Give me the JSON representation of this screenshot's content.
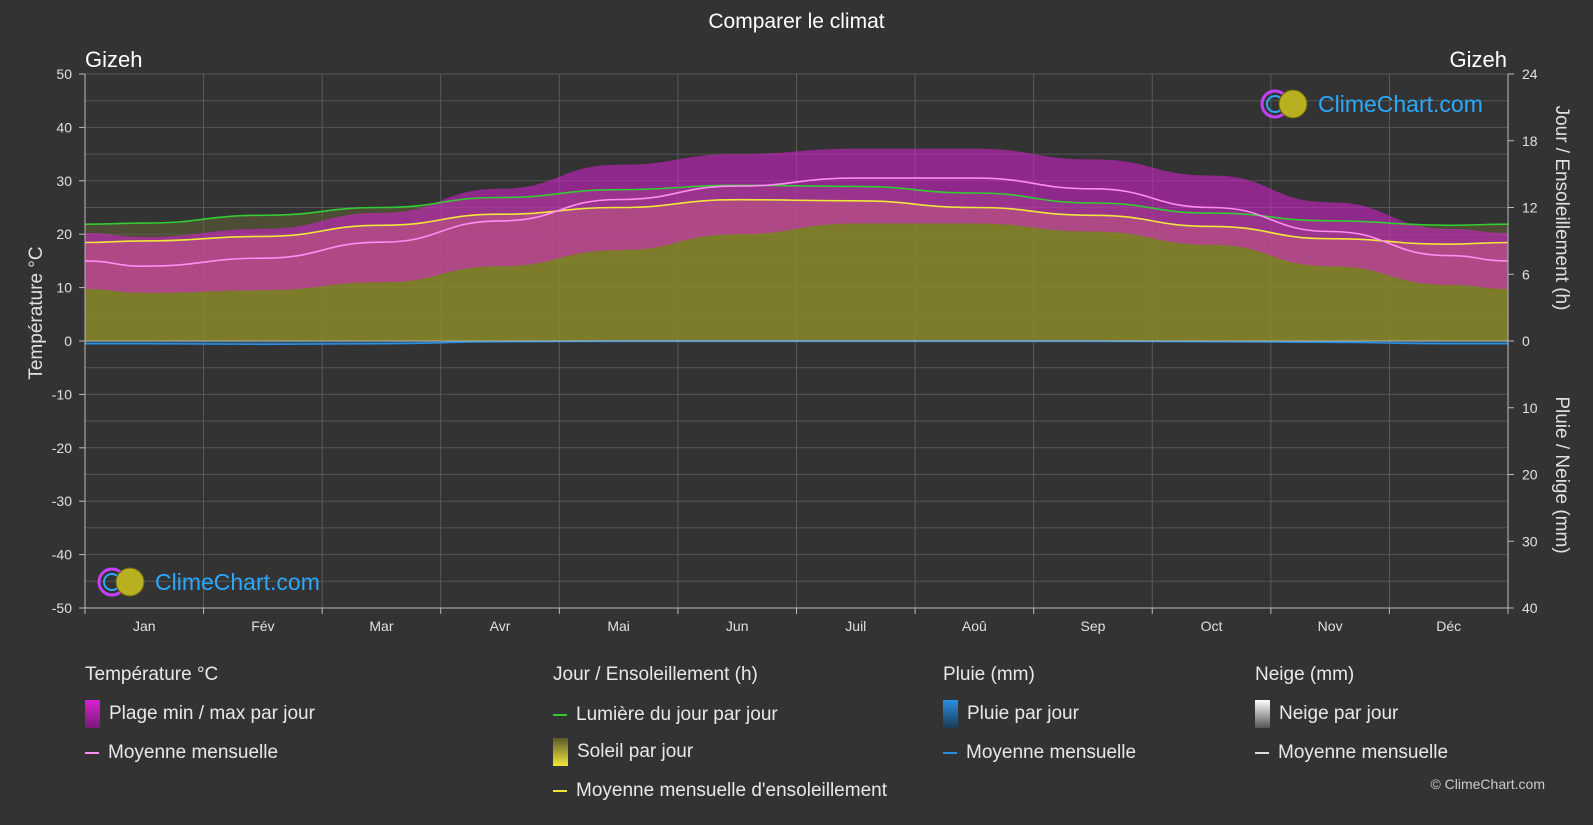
{
  "title": "Comparer le climat",
  "location_left": "Gizeh",
  "location_right": "Gizeh",
  "copyright": "© ClimeChart.com",
  "logo_text": "ClimeChart.com",
  "axes": {
    "left_title": "Température °C",
    "right_top_title": "Jour / Ensoleillement (h)",
    "right_bottom_title": "Pluie / Neige (mm)",
    "left_ticks": [
      "50",
      "40",
      "30",
      "20",
      "10",
      "0",
      "-10",
      "-20",
      "-30",
      "-40",
      "-50"
    ],
    "right_top_ticks": [
      "24",
      "18",
      "12",
      "6",
      "0"
    ],
    "right_bottom_ticks": [
      "10",
      "20",
      "30",
      "40"
    ],
    "months": [
      "Jan",
      "Fév",
      "Mar",
      "Avr",
      "Mai",
      "Jun",
      "Juil",
      "Aoû",
      "Sep",
      "Oct",
      "Nov",
      "Déc"
    ]
  },
  "legend": {
    "temp_head": "Température °C",
    "temp_range": "Plage min / max par jour",
    "temp_mean": "Moyenne mensuelle",
    "sun_head": "Jour / Ensoleillement (h)",
    "daylight": "Lumière du jour par jour",
    "sun_day": "Soleil par jour",
    "sun_mean": "Moyenne mensuelle d'ensoleillement",
    "rain_head": "Pluie (mm)",
    "rain_day": "Pluie par jour",
    "rain_mean": "Moyenne mensuelle",
    "snow_head": "Neige (mm)",
    "snow_day": "Neige par jour",
    "snow_mean": "Moyenne mensuelle"
  },
  "colors": {
    "temp_range": "#d81fd2",
    "temp_mean": "#ff8cf0",
    "daylight": "#33cc33",
    "sunshine_fill": "#8a8a2a",
    "sunshine_mean": "#f0e63c",
    "rain": "#2a8fe0",
    "snow": "#dddddd"
  },
  "chart_data": {
    "type": "area",
    "categories": [
      "Jan",
      "Fév",
      "Mar",
      "Avr",
      "Mai",
      "Jun",
      "Juil",
      "Aoû",
      "Sep",
      "Oct",
      "Nov",
      "Déc"
    ],
    "temp_ylim": [
      -50,
      50
    ],
    "sun_ylim": [
      0,
      24
    ],
    "rain_ylim": [
      0,
      40
    ],
    "series": [
      {
        "name": "Plage min / max par jour (max)",
        "values": [
          19.5,
          21,
          24,
          28.5,
          33,
          35,
          36,
          36,
          34,
          31,
          26,
          21
        ]
      },
      {
        "name": "Plage min / max par jour (min)",
        "values": [
          9,
          9.5,
          11,
          14,
          17,
          20,
          22,
          22,
          20.5,
          18,
          14,
          10.5
        ]
      },
      {
        "name": "Moyenne mensuelle",
        "values": [
          14,
          15.5,
          18.5,
          22.5,
          26.5,
          29,
          30.5,
          30.5,
          28.5,
          25,
          20.5,
          16
        ]
      },
      {
        "name": "Lumière du jour par jour",
        "values": [
          10.6,
          11.3,
          12.0,
          12.9,
          13.6,
          14.0,
          13.9,
          13.3,
          12.4,
          11.5,
          10.8,
          10.4
        ]
      },
      {
        "name": "Soleil par jour",
        "values": [
          9.0,
          9.4,
          10.4,
          11.4,
          12.0,
          12.7,
          12.6,
          12.0,
          11.3,
          10.3,
          9.2,
          8.7
        ]
      },
      {
        "name": "Moyenne mensuelle d'ensoleillement",
        "values": [
          9.0,
          9.4,
          10.4,
          11.4,
          12.0,
          12.7,
          12.6,
          12.0,
          11.3,
          10.3,
          9.2,
          8.7
        ]
      },
      {
        "name": "Pluie (mm) Moyenne mensuelle",
        "values": [
          0.4,
          0.5,
          0.4,
          0.1,
          0.0,
          0.0,
          0.0,
          0.0,
          0.0,
          0.1,
          0.2,
          0.4
        ]
      },
      {
        "name": "Neige (mm) Moyenne mensuelle",
        "values": [
          0,
          0,
          0,
          0,
          0,
          0,
          0,
          0,
          0,
          0,
          0,
          0
        ]
      }
    ]
  }
}
